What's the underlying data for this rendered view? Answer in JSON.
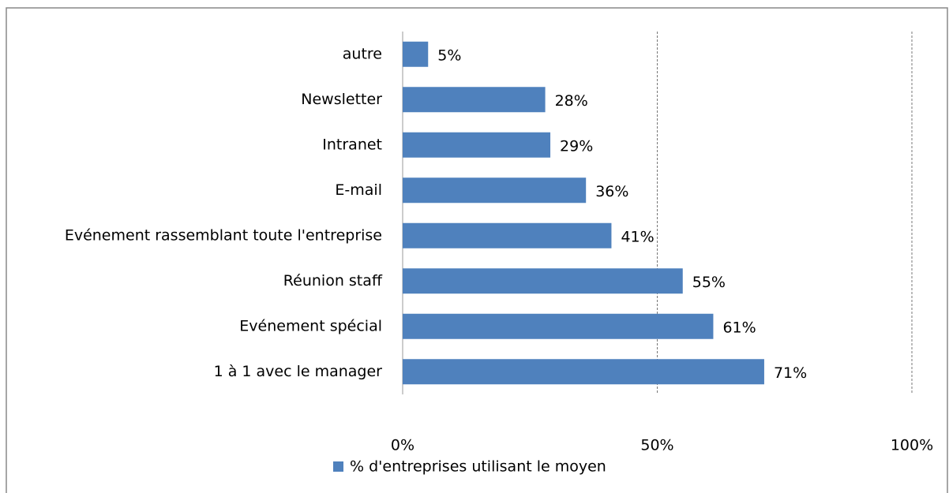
{
  "chart_data": {
    "type": "hbar",
    "categories": [
      "autre",
      "Newsletter",
      "Intranet",
      "E-mail",
      "Evénement rassemblant toute l'entreprise",
      "Réunion staff",
      "Evénement spécial",
      "1 à 1 avec le manager"
    ],
    "series": [
      {
        "name": "% d'entreprises utilisant le moyen",
        "color": "#4f81bd",
        "values": [
          5,
          28,
          29,
          36,
          41,
          55,
          61,
          71
        ],
        "value_labels": [
          "5%",
          "28%",
          "29%",
          "36%",
          "41%",
          "55%",
          "61%",
          "71%"
        ]
      }
    ],
    "xlim": [
      0,
      100
    ],
    "xticks": [
      {
        "value": 0,
        "label": "0%"
      },
      {
        "value": 50,
        "label": "50%"
      },
      {
        "value": 100,
        "label": "100%"
      }
    ],
    "grid": true,
    "legend": "bottom"
  }
}
